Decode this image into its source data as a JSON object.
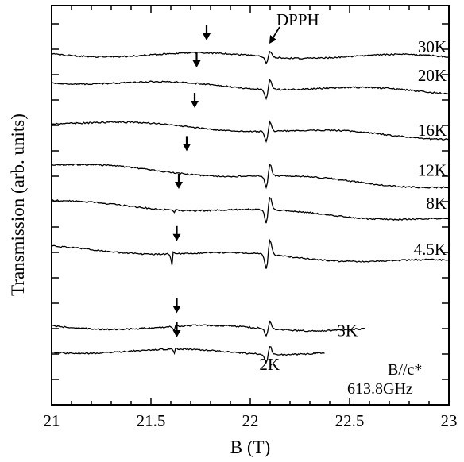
{
  "chart_data": {
    "type": "line",
    "xlabel": "B (T)",
    "ylabel": "Transmission (arb. units)",
    "xlim": [
      21,
      23
    ],
    "x_ticks": [
      "21",
      "21.5",
      "22",
      "22.5",
      "23"
    ],
    "y_tick_labels": false,
    "grid": false,
    "marker": {
      "label": "DPPH",
      "x": 22.09
    },
    "annotations": [
      "B//c*",
      "613.8GHz"
    ],
    "series": [
      {
        "name": "30K",
        "x_start": 21.0,
        "x_end": 23.0,
        "offset": 0.0,
        "arrow_x": 21.78,
        "resonance_x": 21.78,
        "dip": 0.01
      },
      {
        "name": "20K",
        "x_start": 21.0,
        "x_end": 23.0,
        "offset": 1.0,
        "arrow_x": 21.73,
        "resonance_x": 21.73,
        "dip": 0.01
      },
      {
        "name": "16K",
        "x_start": 21.0,
        "x_end": 23.0,
        "offset": 2.5,
        "arrow_x": 21.72,
        "resonance_x": 21.72,
        "dip": 0.01
      },
      {
        "name": "12K",
        "x_start": 21.0,
        "x_end": 23.0,
        "offset": 4.1,
        "arrow_x": 21.68,
        "resonance_x": 21.68,
        "dip": 0.02
      },
      {
        "name": "8K",
        "x_start": 21.0,
        "x_end": 23.0,
        "offset": 5.5,
        "arrow_x": 21.64,
        "resonance_x": 21.62,
        "dip": 0.06
      },
      {
        "name": "4.5K",
        "x_start": 21.0,
        "x_end": 23.0,
        "offset": 7.2,
        "arrow_x": 21.63,
        "resonance_x": 21.61,
        "dip": 0.3
      },
      {
        "name": "3K",
        "x_start": 21.0,
        "x_end": 22.58,
        "offset": 10.1,
        "arrow_x": 21.63,
        "resonance_x": 21.62,
        "dip": 0.1
      },
      {
        "name": "2K",
        "x_start": 21.0,
        "x_end": 22.38,
        "offset": 11.0,
        "arrow_x": 21.63,
        "resonance_x": 21.62,
        "dip": 0.1
      }
    ]
  }
}
